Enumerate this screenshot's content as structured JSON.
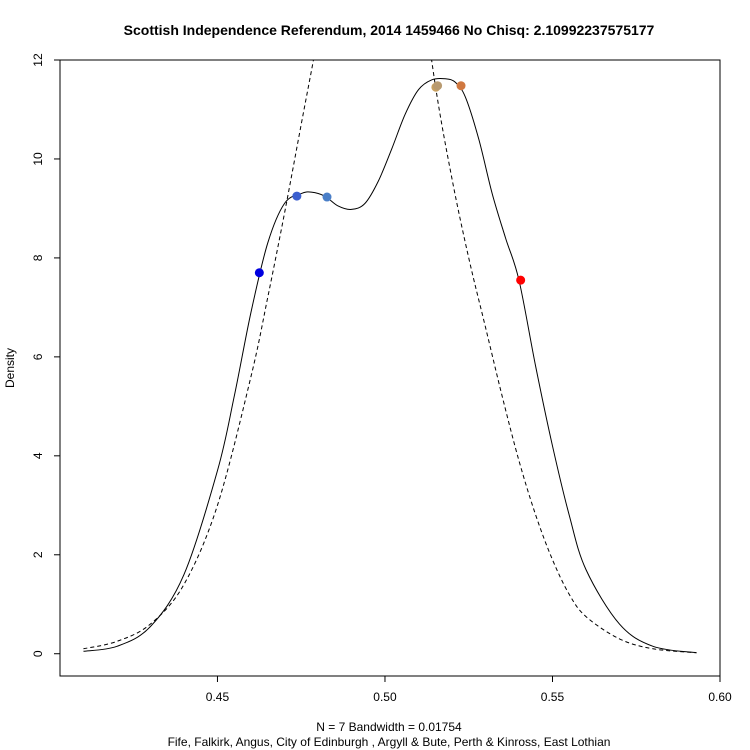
{
  "chart_data": {
    "type": "line",
    "title": "Scottish Independence Referendum, 2014 1459466 No Chisq: 2.10992237575177",
    "xlabel_line1": "N = 7   Bandwidth = 0.01754",
    "xlabel_line2": "Fife, Falkirk, Angus, City of Edinburgh , Argyll & Bute, Perth & Kinross, East Lothian",
    "ylabel": "Density",
    "xlim": [
      0.403,
      0.6
    ],
    "ylim": [
      -0.45,
      12.0
    ],
    "x_ticks": [
      0.45,
      0.5,
      0.55,
      0.6
    ],
    "x_tick_labels": [
      "0.45",
      "0.50",
      "0.55",
      "0.60"
    ],
    "y_ticks": [
      0,
      2,
      4,
      6,
      8,
      10,
      12
    ],
    "y_tick_labels": [
      "0",
      "2",
      "4",
      "6",
      "8",
      "10",
      "12"
    ],
    "grid": false,
    "series": [
      {
        "style": "solid",
        "x": [
          0.41,
          0.42,
          0.43,
          0.44,
          0.45,
          0.455,
          0.46,
          0.465,
          0.47,
          0.475,
          0.478,
          0.482,
          0.486,
          0.49,
          0.494,
          0.498,
          0.502,
          0.506,
          0.51,
          0.514,
          0.518,
          0.521,
          0.524,
          0.528,
          0.532,
          0.536,
          0.54,
          0.545,
          0.55,
          0.555,
          0.56,
          0.57,
          0.58,
          0.593
        ],
        "y": [
          0.05,
          0.15,
          0.55,
          1.6,
          3.7,
          5.2,
          6.9,
          8.3,
          9.1,
          9.3,
          9.33,
          9.25,
          9.05,
          8.98,
          9.1,
          9.55,
          10.2,
          10.9,
          11.4,
          11.6,
          11.62,
          11.55,
          11.25,
          10.4,
          9.3,
          8.4,
          7.55,
          5.8,
          4.2,
          2.8,
          1.7,
          0.6,
          0.15,
          0.02
        ]
      },
      {
        "style": "dashed",
        "x": [
          0.41,
          0.42,
          0.43,
          0.44,
          0.45,
          0.46,
          0.465,
          0.47,
          0.475,
          0.48,
          0.485
        ],
        "y": [
          0.1,
          0.25,
          0.6,
          1.4,
          3.0,
          5.6,
          7.2,
          8.9,
          10.7,
          12.5,
          14.5
        ]
      },
      {
        "style": "dashed",
        "x": [
          0.51,
          0.515,
          0.52,
          0.525,
          0.53,
          0.535,
          0.54,
          0.545,
          0.55,
          0.555,
          0.56,
          0.57,
          0.58,
          0.593
        ],
        "y": [
          14.0,
          11.5,
          9.6,
          8.0,
          6.6,
          5.2,
          3.9,
          2.8,
          1.9,
          1.2,
          0.75,
          0.3,
          0.1,
          0.02
        ]
      }
    ],
    "points": [
      {
        "x": 0.4625,
        "y": 7.7,
        "color": "#0000e0"
      },
      {
        "x": 0.4737,
        "y": 9.25,
        "color": "#3b5fcf"
      },
      {
        "x": 0.4827,
        "y": 9.23,
        "color": "#4a7fc8"
      },
      {
        "x": 0.5152,
        "y": 11.45,
        "color": "#c8a060"
      },
      {
        "x": 0.5157,
        "y": 11.48,
        "color": "#b89a70"
      },
      {
        "x": 0.5227,
        "y": 11.48,
        "color": "#d07840"
      },
      {
        "x": 0.5405,
        "y": 7.55,
        "color": "#ff0000"
      }
    ]
  }
}
